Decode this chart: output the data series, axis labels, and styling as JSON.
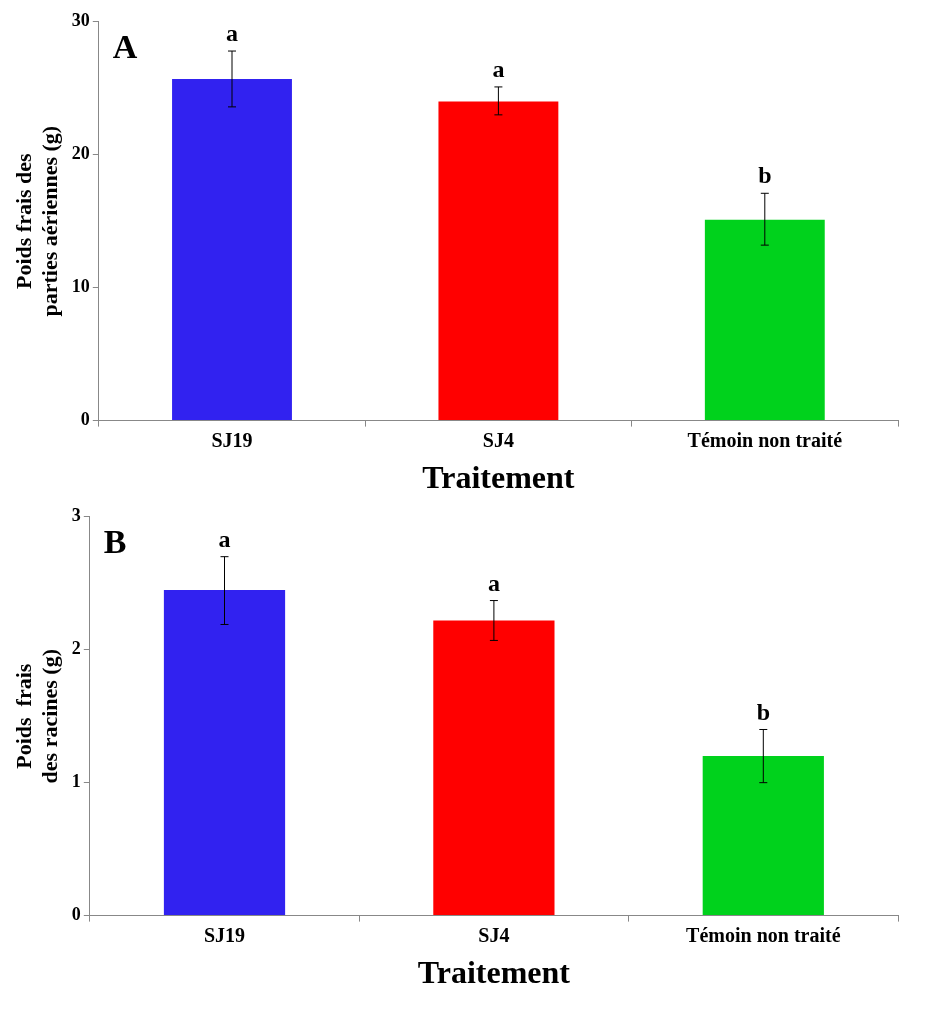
{
  "chart_data": [
    {
      "type": "bar",
      "categories": [
        "SJ19",
        "SJ4",
        "Témoin non traité"
      ],
      "values": [
        25.7,
        24.0,
        15.1
      ],
      "colors": [
        "#3122f0",
        "#ff0000",
        "#00d21c"
      ],
      "errors": [
        [
          23.6,
          27.8
        ],
        [
          23.0,
          25.1
        ],
        [
          13.2,
          17.1
        ]
      ],
      "xlabel": "Traitement",
      "ylabel": "Poids frais des parties aériennes (g)",
      "ylim": [
        0,
        30
      ],
      "yticks": [
        0,
        10,
        20,
        30
      ],
      "grid": false,
      "legend": false,
      "annotations": [
        "A",
        {
          "text": "a",
          "x": "SJ19",
          "y": 27.8
        },
        {
          "text": "a",
          "x": "SJ4",
          "y": 25.1
        },
        {
          "text": "b",
          "x": "Témoin non traité",
          "y": 17.1
        }
      ]
    },
    {
      "type": "bar",
      "categories": [
        "SJ19",
        "SJ4",
        "Témoin non traité"
      ],
      "values": [
        2.45,
        2.22,
        1.2
      ],
      "colors": [
        "#3122f0",
        "#ff0000",
        "#00d21c"
      ],
      "errors": [
        [
          2.19,
          2.7
        ],
        [
          2.07,
          2.37
        ],
        [
          1.0,
          1.4
        ]
      ],
      "xlabel": "Traitement",
      "ylabel": "Poids  frais des racines (g)",
      "ylim": [
        0,
        3
      ],
      "yticks": [
        0,
        1,
        2,
        3
      ],
      "grid": false,
      "legend": false,
      "annotations": [
        "B",
        {
          "text": "a",
          "x": "SJ19",
          "y": 2.7
        },
        {
          "text": "a",
          "x": "SJ4",
          "y": 2.37
        },
        {
          "text": "b",
          "x": "Témoin non traité",
          "y": 1.4
        }
      ]
    }
  ]
}
